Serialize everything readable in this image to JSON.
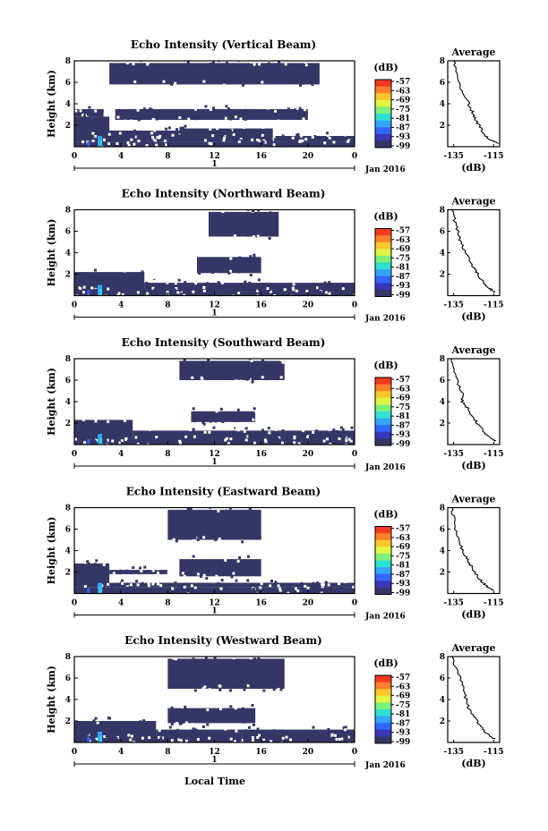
{
  "x_axis_label": "Local Time",
  "colorbar": {
    "unit_label": "(dB)",
    "tick_labels": [
      "-57",
      "-63",
      "-69",
      "-75",
      "-81",
      "-87",
      "-93",
      "-99"
    ],
    "colors": [
      "#f03b20",
      "#ff7f2a",
      "#ffc62e",
      "#dff542",
      "#7bf07b",
      "#2ee0d0",
      "#33a6ff",
      "#3366ff",
      "#3838b8",
      "#363666"
    ]
  },
  "background_color": "#ffffff",
  "echo_color": "#363666",
  "chart_data": [
    {
      "type": "heatmap",
      "title": "Echo Intensity (Vertical Beam)",
      "ylabel": "Height (km)",
      "x_ticks": [
        "0",
        "4",
        "8",
        "12",
        "16",
        "20",
        "0"
      ],
      "y_ticks": [
        "8",
        "6",
        "4",
        "2"
      ],
      "xlim": [
        0,
        24
      ],
      "ylim": [
        0,
        8
      ],
      "date_tick": "1",
      "date_label": "Jan 2016",
      "echo_bands": [
        {
          "x0": 0.0,
          "x1": 24.0,
          "y0": 0.0,
          "y1": 0.45
        },
        {
          "x0": 0.0,
          "x1": 24.0,
          "y0": 0.45,
          "y1": 1.0
        },
        {
          "x0": 0.0,
          "x1": 3.0,
          "y0": 1.0,
          "y1": 2.8
        },
        {
          "x0": 3.0,
          "x1": 9.0,
          "y0": 1.0,
          "y1": 1.5
        },
        {
          "x0": 9.0,
          "x1": 17.0,
          "y0": 1.0,
          "y1": 1.7
        },
        {
          "x0": 0.0,
          "x1": 2.5,
          "y0": 2.8,
          "y1": 3.5
        },
        {
          "x0": 3.5,
          "x1": 20.0,
          "y0": 2.5,
          "y1": 3.5
        },
        {
          "x0": 3.0,
          "x1": 21.0,
          "y0": 5.8,
          "y1": 7.8
        }
      ],
      "mean_profile": {
        "xlabel": "(dB)",
        "title": "Average",
        "x_ticks": [
          "-135",
          "-115"
        ],
        "y_ticks": [
          "8",
          "6",
          "4",
          "2"
        ],
        "xlim": [
          -138,
          -112
        ],
        "ylim": [
          0,
          8
        ],
        "dB": [
          -113,
          -116,
          -119,
          -121,
          -123,
          -124.5,
          -126,
          -128,
          -130.5,
          -132,
          -133.5,
          -135
        ],
        "height": [
          0.3,
          0.6,
          1.0,
          1.6,
          2.2,
          2.8,
          3.4,
          4.2,
          5.0,
          6.0,
          7.0,
          8.0
        ]
      }
    },
    {
      "type": "heatmap",
      "title": "Echo Intensity (Northward Beam)",
      "ylabel": "Height (km)",
      "x_ticks": [
        "0",
        "4",
        "8",
        "12",
        "16",
        "20",
        "0"
      ],
      "y_ticks": [
        "8",
        "6",
        "4",
        "2"
      ],
      "xlim": [
        0,
        24
      ],
      "ylim": [
        0,
        8
      ],
      "date_tick": "1",
      "date_label": "Jan 2016",
      "echo_bands": [
        {
          "x0": 0.0,
          "x1": 24.0,
          "y0": 0.0,
          "y1": 0.5
        },
        {
          "x0": 0.0,
          "x1": 6.0,
          "y0": 0.5,
          "y1": 2.2
        },
        {
          "x0": 6.0,
          "x1": 24.0,
          "y0": 0.5,
          "y1": 1.2
        },
        {
          "x0": 10.5,
          "x1": 16.0,
          "y0": 2.1,
          "y1": 3.6
        },
        {
          "x0": 11.5,
          "x1": 17.5,
          "y0": 5.5,
          "y1": 7.8
        }
      ],
      "mean_profile": {
        "xlabel": "(dB)",
        "title": "Average",
        "x_ticks": [
          "-135",
          "-115"
        ],
        "y_ticks": [
          "8",
          "6",
          "4",
          "2"
        ],
        "xlim": [
          -138,
          -112
        ],
        "ylim": [
          0,
          8
        ],
        "dB": [
          -114,
          -116.5,
          -119,
          -121.5,
          -123.5,
          -125.5,
          -127.5,
          -129.5,
          -131.5,
          -133,
          -134.5,
          -136
        ],
        "height": [
          0.3,
          0.6,
          1.0,
          1.6,
          2.2,
          2.8,
          3.4,
          4.2,
          5.0,
          6.0,
          7.0,
          8.0
        ]
      }
    },
    {
      "type": "heatmap",
      "title": "Echo Intensity (Southward Beam)",
      "ylabel": "Height (km)",
      "x_ticks": [
        "0",
        "4",
        "8",
        "12",
        "16",
        "20",
        "0"
      ],
      "y_ticks": [
        "8",
        "6",
        "4",
        "2"
      ],
      "xlim": [
        0,
        24
      ],
      "ylim": [
        0,
        8
      ],
      "date_tick": "1",
      "date_label": "Jan 2016",
      "echo_bands": [
        {
          "x0": 0.0,
          "x1": 24.0,
          "y0": 0.0,
          "y1": 0.5
        },
        {
          "x0": 0.0,
          "x1": 5.0,
          "y0": 0.5,
          "y1": 2.3
        },
        {
          "x0": 5.0,
          "x1": 24.0,
          "y0": 0.5,
          "y1": 1.3
        },
        {
          "x0": 10.0,
          "x1": 15.5,
          "y0": 2.1,
          "y1": 3.1
        },
        {
          "x0": 9.0,
          "x1": 18.0,
          "y0": 6.0,
          "y1": 7.8
        }
      ],
      "mean_profile": {
        "xlabel": "(dB)",
        "title": "Average",
        "x_ticks": [
          "-135",
          "-115"
        ],
        "y_ticks": [
          "8",
          "6",
          "4",
          "2"
        ],
        "xlim": [
          -138,
          -112
        ],
        "ylim": [
          0,
          8
        ],
        "dB": [
          -114,
          -116.5,
          -119,
          -121.5,
          -124,
          -126,
          -128,
          -131,
          -130,
          -132.5,
          -134.5,
          -136
        ],
        "height": [
          0.3,
          0.6,
          1.0,
          1.6,
          2.2,
          2.8,
          3.4,
          4.0,
          4.6,
          5.6,
          6.8,
          8.0
        ]
      }
    },
    {
      "type": "heatmap",
      "title": "Echo Intensity (Eastward Beam)",
      "ylabel": "Height (km)",
      "x_ticks": [
        "0",
        "4",
        "8",
        "12",
        "16",
        "20",
        "0"
      ],
      "y_ticks": [
        "8",
        "6",
        "4",
        "2"
      ],
      "xlim": [
        0,
        24
      ],
      "ylim": [
        0,
        8
      ],
      "date_tick": "1",
      "date_label": "Jan 2016",
      "echo_bands": [
        {
          "x0": 0.0,
          "x1": 24.0,
          "y0": 0.0,
          "y1": 0.6
        },
        {
          "x0": 0.0,
          "x1": 3.0,
          "y0": 0.6,
          "y1": 2.8
        },
        {
          "x0": 3.0,
          "x1": 24.0,
          "y0": 0.6,
          "y1": 1.0
        },
        {
          "x0": 3.0,
          "x1": 8.0,
          "y0": 1.8,
          "y1": 2.2
        },
        {
          "x0": 9.0,
          "x1": 16.0,
          "y0": 1.6,
          "y1": 3.2
        },
        {
          "x0": 8.0,
          "x1": 16.0,
          "y0": 5.0,
          "y1": 7.8
        }
      ],
      "mean_profile": {
        "xlabel": "(dB)",
        "title": "Average",
        "x_ticks": [
          "-135",
          "-115"
        ],
        "y_ticks": [
          "8",
          "6",
          "4",
          "2"
        ],
        "xlim": [
          -138,
          -112
        ],
        "ylim": [
          0,
          8
        ],
        "dB": [
          -115,
          -118,
          -120.5,
          -123,
          -125,
          -127,
          -129,
          -131,
          -132.5,
          -134,
          -135,
          -136
        ],
        "height": [
          0.3,
          0.6,
          1.0,
          1.6,
          2.2,
          2.8,
          3.4,
          4.2,
          5.0,
          6.0,
          7.0,
          8.0
        ]
      }
    },
    {
      "type": "heatmap",
      "title": "Echo Intensity (Westward Beam)",
      "ylabel": "Height (km)",
      "x_ticks": [
        "0",
        "4",
        "8",
        "12",
        "16",
        "20",
        "0"
      ],
      "y_ticks": [
        "8",
        "6",
        "4",
        "2"
      ],
      "xlim": [
        0,
        24
      ],
      "ylim": [
        0,
        8
      ],
      "date_tick": "1",
      "date_label": "Jan 2016",
      "echo_bands": [
        {
          "x0": 0.0,
          "x1": 24.0,
          "y0": 0.0,
          "y1": 0.5
        },
        {
          "x0": 0.0,
          "x1": 7.0,
          "y0": 0.5,
          "y1": 2.0
        },
        {
          "x0": 7.0,
          "x1": 24.0,
          "y0": 0.5,
          "y1": 1.2
        },
        {
          "x0": 8.0,
          "x1": 15.5,
          "y0": 1.8,
          "y1": 3.2
        },
        {
          "x0": 8.0,
          "x1": 18.0,
          "y0": 5.0,
          "y1": 7.8
        }
      ],
      "mean_profile": {
        "xlabel": "(dB)",
        "title": "Average",
        "x_ticks": [
          "-135",
          "-115"
        ],
        "y_ticks": [
          "8",
          "6",
          "4",
          "2"
        ],
        "xlim": [
          -138,
          -112
        ],
        "ylim": [
          0,
          8
        ],
        "dB": [
          -114,
          -117,
          -119.5,
          -122,
          -124,
          -126,
          -128,
          -129,
          -130,
          -132,
          -134,
          -136
        ],
        "height": [
          0.3,
          0.6,
          1.0,
          1.6,
          2.2,
          2.8,
          3.4,
          4.2,
          5.0,
          6.0,
          7.0,
          8.0
        ]
      }
    }
  ]
}
